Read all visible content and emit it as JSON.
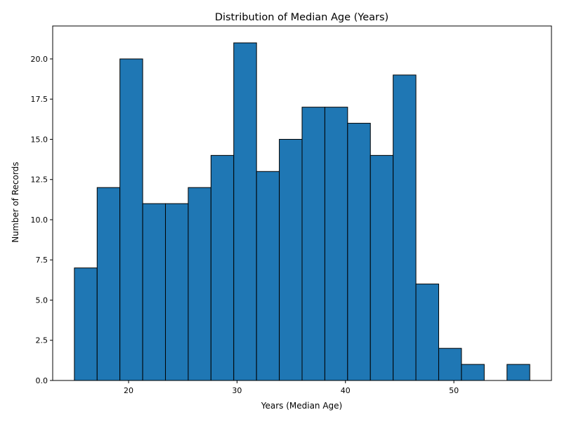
{
  "chart_data": {
    "type": "bar",
    "title": "Distribution of Median Age (Years)",
    "xlabel": "Years (Median Age)",
    "ylabel": "Number of Records",
    "bin_start": 15.0,
    "bin_width": 2.1,
    "values": [
      7,
      12,
      20,
      11,
      11,
      12,
      14,
      21,
      13,
      15,
      17,
      17,
      16,
      14,
      19,
      6,
      2,
      1,
      0,
      1
    ],
    "xlim": [
      13.0,
      59.0
    ],
    "ylim": [
      0,
      22.05
    ],
    "xticks": [
      20,
      30,
      40,
      50
    ],
    "xtick_labels": [
      "20",
      "30",
      "40",
      "50"
    ],
    "yticks": [
      0,
      2.5,
      5,
      7.5,
      10,
      12.5,
      15,
      17.5,
      20
    ],
    "ytick_labels": [
      "0.0",
      "2.5",
      "5.0",
      "7.5",
      "10.0",
      "12.5",
      "15.0",
      "17.5",
      "20.0"
    ],
    "grid": false,
    "colors": {
      "bar_fill": "#1f77b4",
      "bar_edge": "#000000",
      "axes": "#000000"
    }
  }
}
